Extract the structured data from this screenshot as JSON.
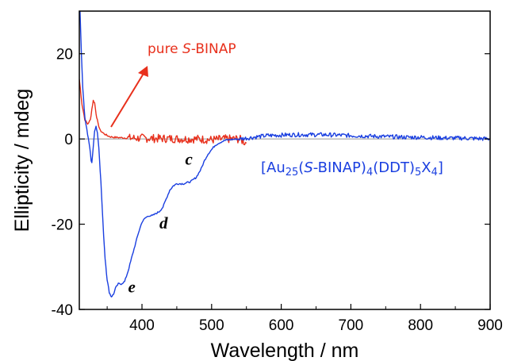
{
  "chart_data": {
    "type": "line",
    "xlabel": "Wavelength  /  nm",
    "ylabel": "Ellipticity  /  mdeg",
    "xlim": [
      310,
      900
    ],
    "ylim": [
      -40,
      30
    ],
    "x_ticks": [
      400,
      500,
      600,
      700,
      800,
      900
    ],
    "y_ticks": [
      -40,
      -20,
      0,
      20
    ],
    "zero_line": true,
    "colors": {
      "pure": "#e8301c",
      "cluster": "#1a3fe0",
      "zero_line": "#999999"
    },
    "series": [
      {
        "name": "pure S-BINAP",
        "color": "#e8301c",
        "points": [
          [
            310,
            14
          ],
          [
            314,
            8
          ],
          [
            318,
            4.5
          ],
          [
            322,
            3.5
          ],
          [
            326,
            4.5
          ],
          [
            328,
            7
          ],
          [
            330,
            9
          ],
          [
            332,
            8.5
          ],
          [
            334,
            6
          ],
          [
            337,
            3.5
          ],
          [
            340,
            2
          ],
          [
            345,
            1.3
          ],
          [
            350,
            0.8
          ],
          [
            355,
            0.5
          ],
          [
            360,
            0.4
          ],
          [
            370,
            0.3
          ],
          [
            380,
            0.2
          ],
          [
            400,
            0.2
          ],
          [
            420,
            0.1
          ],
          [
            440,
            0.1
          ],
          [
            460,
            0
          ],
          [
            480,
            0
          ],
          [
            500,
            -0.2
          ],
          [
            520,
            0
          ],
          [
            540,
            0
          ],
          [
            550,
            -1
          ]
        ],
        "noise": 1.0,
        "noise_from": 380
      },
      {
        "name": "[Au25(S-BINAP)4(DDT)5X4]",
        "color": "#1a3fe0",
        "points": [
          [
            311,
            30
          ],
          [
            313,
            20
          ],
          [
            315,
            12
          ],
          [
            318,
            5
          ],
          [
            322,
            1
          ],
          [
            325,
            -2
          ],
          [
            327,
            -5
          ],
          [
            328,
            -5.5
          ],
          [
            330,
            -2
          ],
          [
            332,
            2
          ],
          [
            334,
            3
          ],
          [
            336,
            1.5
          ],
          [
            338,
            -2
          ],
          [
            341,
            -10
          ],
          [
            344,
            -20
          ],
          [
            347,
            -28
          ],
          [
            350,
            -33
          ],
          [
            353,
            -36
          ],
          [
            356,
            -37
          ],
          [
            359,
            -36.5
          ],
          [
            362,
            -35
          ],
          [
            366,
            -34
          ],
          [
            370,
            -34
          ],
          [
            375,
            -33.5
          ],
          [
            380,
            -31
          ],
          [
            385,
            -28
          ],
          [
            390,
            -25
          ],
          [
            395,
            -22
          ],
          [
            400,
            -19.5
          ],
          [
            405,
            -18.5
          ],
          [
            410,
            -18
          ],
          [
            415,
            -18
          ],
          [
            420,
            -17.5
          ],
          [
            425,
            -17
          ],
          [
            430,
            -16
          ],
          [
            435,
            -14
          ],
          [
            440,
            -12
          ],
          [
            445,
            -11
          ],
          [
            450,
            -10.5
          ],
          [
            460,
            -10.5
          ],
          [
            470,
            -10
          ],
          [
            478,
            -9
          ],
          [
            485,
            -7
          ],
          [
            490,
            -5
          ],
          [
            495,
            -3.5
          ],
          [
            500,
            -2.5
          ],
          [
            505,
            -1.5
          ],
          [
            510,
            -1
          ],
          [
            515,
            -0.6
          ],
          [
            520,
            -0.3
          ],
          [
            530,
            -0.1
          ],
          [
            540,
            0
          ],
          [
            550,
            0.2
          ],
          [
            560,
            0.4
          ],
          [
            570,
            0.6
          ],
          [
            580,
            0.8
          ],
          [
            600,
            0.9
          ],
          [
            620,
            1
          ],
          [
            640,
            1
          ],
          [
            660,
            1
          ],
          [
            680,
            0.9
          ],
          [
            700,
            0.8
          ],
          [
            720,
            0.7
          ],
          [
            740,
            0.6
          ],
          [
            760,
            0.5
          ],
          [
            780,
            0.4
          ],
          [
            800,
            0.4
          ],
          [
            820,
            0.3
          ],
          [
            840,
            0.2
          ],
          [
            860,
            0.2
          ],
          [
            880,
            0.1
          ],
          [
            900,
            0
          ]
        ],
        "noise": 0.5,
        "noise_from": 540
      }
    ],
    "annotations": {
      "pure_label_prefix": "pure ",
      "pure_label_italic": "S",
      "pure_label_suffix": "-BINAP",
      "cluster_open": "[Au",
      "cluster_sub1": "25",
      "cluster_paren": "(",
      "cluster_italic": "S",
      "cluster_mid": "-BINAP)",
      "cluster_sub2": "4",
      "cluster_ddt": "(DDT)",
      "cluster_sub3": "5",
      "cluster_x": "X",
      "cluster_sub4": "4",
      "cluster_close": "]",
      "letters": [
        {
          "text": "c",
          "x": 462,
          "y": -6
        },
        {
          "text": "d",
          "x": 425,
          "y": -21
        },
        {
          "text": "e",
          "x": 380,
          "y": -36
        }
      ]
    }
  }
}
